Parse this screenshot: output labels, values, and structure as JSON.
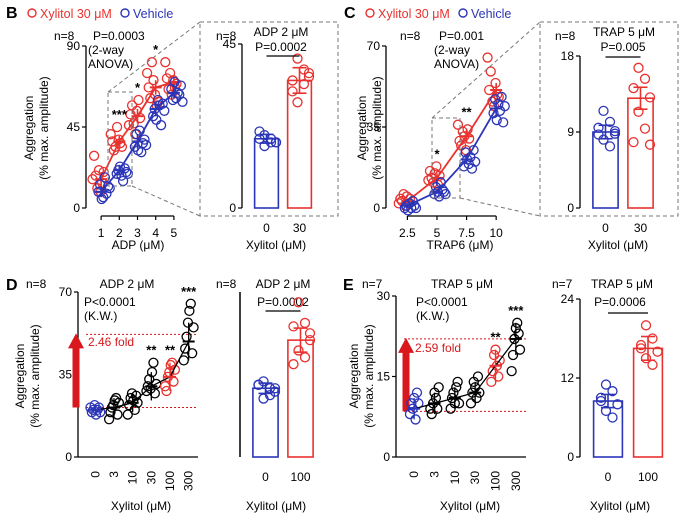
{
  "colors": {
    "xylitol": "#e8322f",
    "vehicle": "#2b35b7",
    "black": "#000000",
    "fold_arrow": "#d8181c",
    "dash": "#777777"
  },
  "panels": {
    "B": {
      "letter": "B",
      "legend_xylitol": "Xylitol 30 μM",
      "legend_vehicle": "Vehicle",
      "n_label": "n=8",
      "p_text": "P=0.0003",
      "test_line1": "(2-way",
      "test_line2": "ANOVA)",
      "ylabel1": "Aggregation",
      "ylabel2": "(% max. amplitude)",
      "xlabel": "ADP (μM)"
    },
    "B_inset": {
      "n_label": "n=8",
      "title": "ADP 2 μM",
      "p_text": "P=0.0002",
      "xlabel": "Xylitol (μM)"
    },
    "C": {
      "letter": "C",
      "legend_xylitol": "Xylitol 30 μM",
      "legend_vehicle": "Vehicle",
      "n_label": "n=8",
      "p_text": "P=0.001",
      "test_line1": "(2-way",
      "test_line2": "ANOVA)",
      "ylabel1": "Aggregation",
      "ylabel2": "(% max. amplitude)",
      "xlabel": "TRAP6 (μM)"
    },
    "C_inset": {
      "n_label": "n=8",
      "title": "TRAP 5 μM",
      "p_text": "P=0.005",
      "xlabel": "Xylitol (μM)"
    },
    "D": {
      "letter": "D",
      "n_label": "n=8",
      "title": "ADP 2 μM",
      "p_text": "P<0.0001",
      "test_text": "(K.W.)",
      "fold_text": "2.46 fold",
      "ylabel1": "Aggregation",
      "ylabel2": "(% max. amplitude)",
      "xlabel": "Xylitol (μM)"
    },
    "D_bar": {
      "n_label": "n=8",
      "title": "ADP 2 μM",
      "p_text": "P=0.0002",
      "xlabel": "Xylitol (μM)"
    },
    "E": {
      "letter": "E",
      "n_label": "n=7",
      "title": "TRAP 5 μM",
      "p_text": "P<0.0001",
      "test_text": "(K.W.)",
      "fold_text": "2.59 fold",
      "ylabel1": "Aggregation",
      "ylabel2": "(% max. amplitude)",
      "xlabel": "Xylitol (μM)"
    },
    "E_bar": {
      "n_label": "n=7",
      "title": "TRAP 5 μM",
      "p_text": "P=0.0006",
      "xlabel": "Xylitol (μM)"
    }
  },
  "chart_data": [
    {
      "id": "B",
      "type": "line",
      "title": "",
      "xlabel": "ADP (μM)",
      "ylabel": "Aggregation (% max. amplitude)",
      "x": [
        1,
        2,
        3,
        4,
        5
      ],
      "xlim": [
        0.5,
        5.5
      ],
      "ylim": [
        0,
        90
      ],
      "yticks": [
        0,
        45,
        90
      ],
      "xticks": [
        "1",
        "2",
        "3",
        "4",
        "5"
      ],
      "series": [
        {
          "name": "Xylitol 30 μM",
          "color_key": "xylitol",
          "means": [
            16,
            37,
            51,
            67,
            70
          ],
          "sem": [
            4,
            3,
            4,
            4,
            3
          ],
          "points": [
            [
              16,
              29,
              18,
              11,
              21,
              9,
              14,
              20
            ],
            [
              41,
              37,
              32,
              34,
              45,
              38,
              36,
              34
            ],
            [
              46,
              52,
              57,
              47,
              41,
              54,
              60,
              50
            ],
            [
              75,
              67,
              61,
              81,
              71,
              63,
              57,
              59
            ],
            [
              81,
              72,
              66,
              75,
              63,
              71,
              67,
              69
            ]
          ]
        },
        {
          "name": "Vehicle",
          "color_key": "vehicle",
          "means": [
            9,
            21,
            37,
            55,
            64
          ],
          "sem": [
            3,
            3,
            4,
            4,
            3
          ],
          "points": [
            [
              9,
              13,
              5,
              6,
              17,
              8,
              12,
              11
            ],
            [
              19,
              21,
              23,
              18,
              15,
              22,
              20,
              19
            ],
            [
              34,
              41,
              32,
              43,
              31,
              36,
              38,
              35
            ],
            [
              51,
              55,
              49,
              60,
              57,
              46,
              58,
              54
            ],
            [
              66,
              60,
              70,
              61,
              64,
              63,
              68,
              59
            ]
          ]
        }
      ],
      "significance": [
        {
          "x": 2,
          "label": "***"
        },
        {
          "x": 3,
          "label": "*"
        },
        {
          "x": 4,
          "label": "*"
        }
      ]
    },
    {
      "id": "B_inset",
      "type": "bar",
      "title": "ADP 2 μM",
      "xlabel": "Xylitol (μM)",
      "ylabel": "",
      "categories": [
        "0",
        "30"
      ],
      "ylim": [
        0,
        45
      ],
      "yticks": [
        0,
        45
      ],
      "values": [
        19,
        35
      ],
      "sem": [
        1.2,
        3.5
      ],
      "points": [
        [
          17,
          18,
          19,
          18,
          20,
          19,
          21,
          18
        ],
        [
          41,
          34,
          32,
          36,
          29,
          38,
          35,
          37
        ]
      ],
      "color_keys": [
        "vehicle",
        "xylitol"
      ],
      "p_value": "P=0.0002"
    },
    {
      "id": "C",
      "type": "line",
      "title": "",
      "xlabel": "TRAP6 (μM)",
      "ylabel": "Aggregation (% max. amplitude)",
      "x": [
        2.5,
        5,
        7.5,
        10
      ],
      "xlim": [
        1.2,
        11.0
      ],
      "ylim": [
        0,
        70
      ],
      "yticks": [
        0,
        35,
        70
      ],
      "xticks": [
        "2.5",
        "5",
        "7.5",
        "10"
      ],
      "series": [
        {
          "name": "Xylitol 30 μM",
          "color_key": "xylitol",
          "means": [
            3,
            13,
            31,
            51
          ],
          "sem": [
            1,
            2,
            3,
            3
          ],
          "points": [
            [
              2,
              4,
              3,
              6,
              1,
              5,
              2,
              4
            ],
            [
              12,
              16,
              13,
              11,
              15,
              18,
              10,
              14
            ],
            [
              36,
              29,
              27,
              33,
              31,
              25,
              34,
              30
            ],
            [
              65,
              51,
              59,
              46,
              44,
              54,
              49,
              48
            ]
          ]
        },
        {
          "name": "Vehicle",
          "color_key": "vehicle",
          "means": [
            1,
            7,
            21,
            43
          ],
          "sem": [
            1,
            1,
            2,
            3
          ],
          "points": [
            [
              0,
              1,
              -1,
              2,
              0,
              3,
              1,
              0
            ],
            [
              6,
              9,
              7,
              5,
              11,
              8,
              7,
              6
            ],
            [
              18,
              24,
              21,
              19,
              22,
              17,
              25,
              20
            ],
            [
              41,
              47,
              38,
              45,
              42,
              48,
              37,
              44
            ]
          ]
        }
      ],
      "significance": [
        {
          "x": 5,
          "label": "*"
        },
        {
          "x": 7.5,
          "label": "**"
        }
      ]
    },
    {
      "id": "C_inset",
      "type": "bar",
      "title": "TRAP 5 μM",
      "xlabel": "Xylitol (μM)",
      "ylabel": "",
      "categories": [
        "0",
        "30"
      ],
      "ylim": [
        0,
        18
      ],
      "yticks": [
        0,
        9,
        18
      ],
      "values": [
        9,
        13
      ],
      "sem": [
        0.8,
        1.3
      ],
      "points": [
        [
          11.5,
          10.2,
          8.7,
          9.1,
          8.1,
          7.3,
          9.5,
          8.8
        ],
        [
          16.6,
          15.3,
          14.2,
          13.1,
          11.4,
          9.4,
          7.8,
          7.5
        ]
      ],
      "color_keys": [
        "vehicle",
        "xylitol"
      ],
      "p_value": "P=0.005"
    },
    {
      "id": "D",
      "type": "scatter",
      "title": "ADP 2 μM",
      "xlabel": "Xylitol (μM)",
      "ylabel": "Aggregation (% max. amplitude)",
      "categories": [
        "0",
        "3",
        "10",
        "30",
        "100",
        "300"
      ],
      "ylim": [
        0,
        70
      ],
      "yticks": [
        0,
        35,
        70
      ],
      "means": [
        20,
        21,
        23,
        30,
        34,
        49
      ],
      "sem": [
        1,
        2,
        2,
        3,
        3,
        4
      ],
      "points": [
        [
          21,
          19,
          20,
          22,
          18,
          20,
          21,
          19
        ],
        [
          16,
          19,
          21,
          22,
          24,
          25,
          18,
          23
        ],
        [
          18,
          22,
          25,
          27,
          24,
          20,
          26,
          23
        ],
        [
          28,
          30,
          33,
          29,
          36,
          40,
          27,
          31
        ],
        [
          30,
          28,
          34,
          36,
          39,
          40,
          32,
          37
        ],
        [
          41,
          46,
          51,
          57,
          62,
          65,
          44,
          55
        ]
      ],
      "point_colors": [
        "vehicle",
        "black",
        "black",
        "black",
        "xylitol",
        "black"
      ],
      "significance": [
        {
          "x": "30",
          "label": "**"
        },
        {
          "x": "100",
          "label": "**"
        },
        {
          "x": "300",
          "label": "***"
        }
      ],
      "reference_lines": {
        "upper": 52,
        "lower": 21
      },
      "fold_change": "2.46 fold"
    },
    {
      "id": "D_bar",
      "type": "bar",
      "title": "ADP 2 μM",
      "xlabel": "Xylitol (μM)",
      "ylabel": "",
      "categories": [
        "0",
        "100"
      ],
      "ylim": [
        0,
        48
      ],
      "values": [
        20,
        34
      ],
      "sem": [
        1.5,
        3.5
      ],
      "points": [
        [
          22,
          20,
          21,
          19,
          17,
          18,
          21,
          20
        ],
        [
          45,
          39,
          38,
          34,
          31,
          29,
          27,
          36
        ]
      ],
      "color_keys": [
        "vehicle",
        "xylitol"
      ],
      "p_value": "P=0.0002"
    },
    {
      "id": "E",
      "type": "scatter",
      "title": "TRAP 5 μM",
      "xlabel": "Xylitol (μM)",
      "ylabel": "Aggregation (% max. amplitude)",
      "categories": [
        "0",
        "3",
        "10",
        "30",
        "100",
        "300"
      ],
      "ylim": [
        0,
        30
      ],
      "yticks": [
        0,
        15,
        30
      ],
      "means": [
        9,
        10,
        11,
        12,
        17,
        22
      ],
      "sem": [
        1,
        1,
        1,
        1,
        1.5,
        1.5
      ],
      "points": [
        [
          8,
          10,
          9,
          11,
          7,
          12,
          10
        ],
        [
          9,
          8,
          10,
          12,
          11,
          9,
          13
        ],
        [
          9,
          11,
          12,
          10,
          13,
          14,
          10
        ],
        [
          10,
          12,
          14,
          13,
          11,
          15,
          12
        ],
        [
          14,
          16,
          19,
          20,
          17,
          15,
          18
        ],
        [
          16,
          19,
          22,
          24,
          25,
          23,
          20
        ]
      ],
      "point_colors": [
        "vehicle",
        "black",
        "black",
        "black",
        "xylitol",
        "black"
      ],
      "significance": [
        {
          "x": "100",
          "label": "**"
        },
        {
          "x": "300",
          "label": "***"
        }
      ],
      "reference_lines": {
        "upper": 22,
        "lower": 8.5
      },
      "fold_change": "2.59 fold"
    },
    {
      "id": "E_bar",
      "type": "bar",
      "title": "TRAP 5 μM",
      "xlabel": "Xylitol (μM)",
      "ylabel": "",
      "categories": [
        "0",
        "100"
      ],
      "ylim": [
        0,
        24
      ],
      "yticks": [
        0,
        12,
        24
      ],
      "values": [
        8.5,
        16.5
      ],
      "sem": [
        1.0,
        1.8
      ],
      "points": [
        [
          11,
          10,
          9,
          8,
          7,
          6,
          8.5
        ],
        [
          20,
          18,
          17,
          16,
          15,
          14,
          16.5
        ]
      ],
      "color_keys": [
        "vehicle",
        "xylitol"
      ],
      "p_value": "P=0.0006"
    }
  ]
}
